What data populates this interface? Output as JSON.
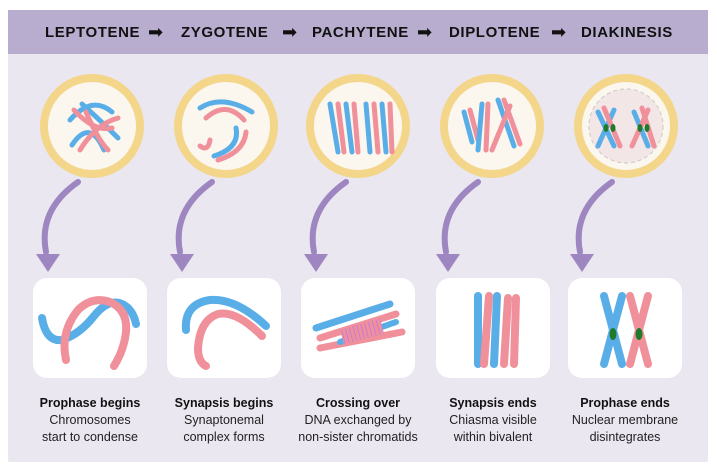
{
  "stages": [
    {
      "name": "LEPTOTENE",
      "title": "Prophase begins",
      "desc1": "Chromosomes",
      "desc2": "start to condense"
    },
    {
      "name": "ZYGOTENE",
      "title": "Synapsis begins",
      "desc1": "Synaptonemal",
      "desc2": "complex forms"
    },
    {
      "name": "PACHYTENE",
      "title": "Crossing over",
      "desc1": "DNA exchanged by",
      "desc2": "non-sister chromatids"
    },
    {
      "name": "DIPLOTENE",
      "title": "Synapsis ends",
      "desc1": "Chiasma visible",
      "desc2": "within bivalent"
    },
    {
      "name": "DIAKINESIS",
      "title": "Prophase ends",
      "desc1": "Nuclear membrane",
      "desc2": "disintegrates"
    }
  ],
  "arrow_glyph": "➡",
  "colors": {
    "header": "#b9adcf",
    "panel": "#ebe7f1",
    "blue_chromosome": "#5aaee8",
    "pink_chromosome": "#f0909a",
    "cell_ring": "#f3d68a",
    "cell_inner": "#fbf6ee",
    "curved_arrow": "#9e86c0",
    "chiasma": "#1f7a2c"
  },
  "icons": [
    "right-arrow-icon",
    "curved-down-arrow-icon"
  ]
}
